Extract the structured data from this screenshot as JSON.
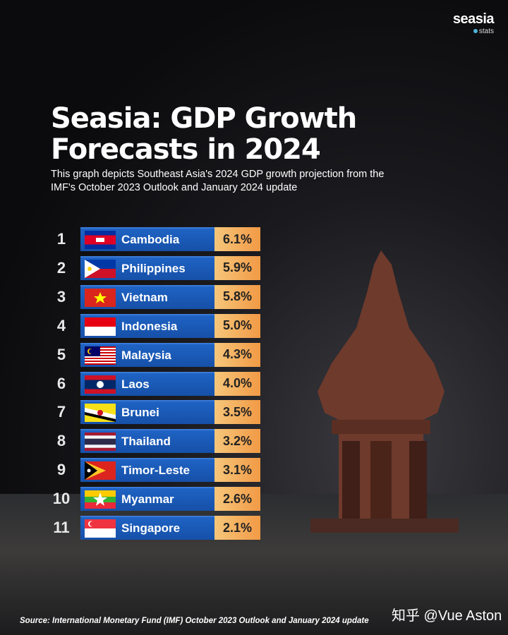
{
  "brand": {
    "name": "seasia",
    "tag": "stats",
    "accent": "#4fb3d9"
  },
  "title": "Seasia: GDP Growth Forecasts in 2024",
  "subtitle": "This graph depicts Southeast Asia's 2024 GDP growth projection from the IMF's October 2023 Outlook and January 2024 update",
  "source": "Source: International Monetary Fund (IMF) October 2023 Outlook and January 2024 update",
  "watermark": "知乎 @Vue Aston",
  "colors": {
    "bar": "#1f63c4",
    "value_box": "#f4b261"
  },
  "chart_data": {
    "type": "table",
    "columns": [
      "rank",
      "country",
      "gdp_growth_2024"
    ],
    "rows": [
      {
        "rank": "1",
        "country": "Cambodia",
        "value": "6.1%",
        "flag": "cambodia-flag"
      },
      {
        "rank": "2",
        "country": "Philippines",
        "value": "5.9%",
        "flag": "philippines-flag"
      },
      {
        "rank": "3",
        "country": "Vietnam",
        "value": "5.8%",
        "flag": "vietnam-flag"
      },
      {
        "rank": "4",
        "country": "Indonesia",
        "value": "5.0%",
        "flag": "indonesia-flag"
      },
      {
        "rank": "5",
        "country": "Malaysia",
        "value": "4.3%",
        "flag": "malaysia-flag"
      },
      {
        "rank": "6",
        "country": "Laos",
        "value": "4.0%",
        "flag": "laos-flag"
      },
      {
        "rank": "7",
        "country": "Brunei",
        "value": "3.5%",
        "flag": "brunei-flag"
      },
      {
        "rank": "8",
        "country": "Thailand",
        "value": "3.2%",
        "flag": "thailand-flag"
      },
      {
        "rank": "9",
        "country": "Timor-Leste",
        "value": "3.1%",
        "flag": "timor-leste-flag"
      },
      {
        "rank": "10",
        "country": "Myanmar",
        "value": "2.6%",
        "flag": "myanmar-flag"
      },
      {
        "rank": "11",
        "country": "Singapore",
        "value": "2.1%",
        "flag": "singapore-flag"
      }
    ]
  }
}
